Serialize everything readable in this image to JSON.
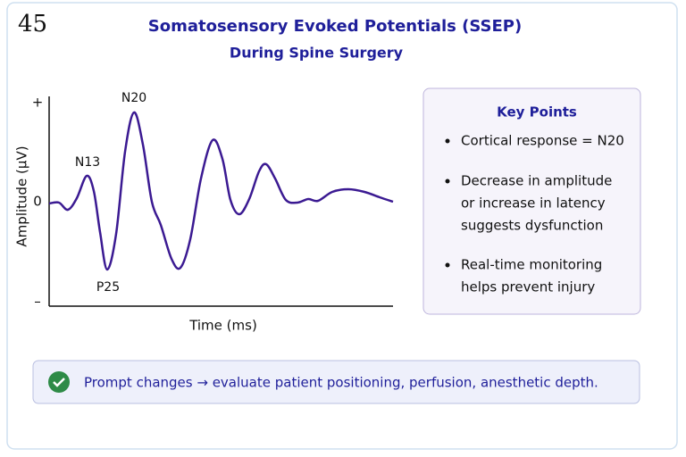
{
  "header": {
    "slide_number": "45",
    "title": "Somatosensory Evoked Potentials (SSEP)",
    "subtitle": "During Spine Surgery"
  },
  "waveform": {
    "y_axis_label": "Amplitude (μV)",
    "x_axis_label": "Time (ms)",
    "y_ticks": [
      "+",
      "0",
      "–"
    ],
    "peaks": [
      "N13",
      "N20",
      "P25"
    ]
  },
  "key_points": {
    "title": "Key Points",
    "items": [
      [
        "Cortical response = N20"
      ],
      [
        "Decrease in amplitude",
        "or increase in latency",
        "suggests dysfunction"
      ],
      [
        "Real-time monitoring",
        "helps prevent injury"
      ]
    ]
  },
  "callout": {
    "text": "Prompt changes → evaluate patient positioning, perfusion, anesthetic depth."
  }
}
